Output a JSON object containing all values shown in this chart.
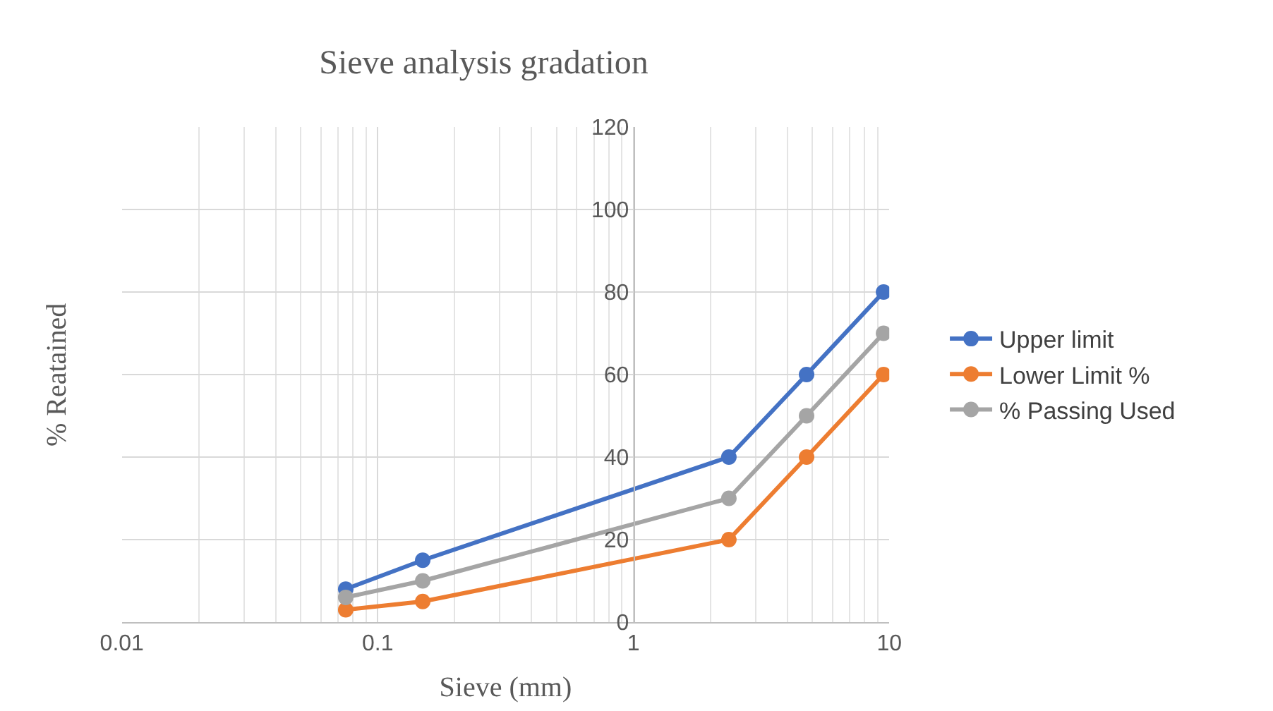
{
  "chart_data": {
    "type": "line",
    "title": "Sieve analysis gradation",
    "xlabel": "Sieve (mm)",
    "ylabel": "% Reatained",
    "x": [
      0.075,
      0.15,
      2.36,
      4.75,
      9.5
    ],
    "series": [
      {
        "name": "Upper limit",
        "color": "#4472c4",
        "values": [
          8,
          15,
          40,
          60,
          80
        ]
      },
      {
        "name": "Lower Limit %",
        "color": "#ed7d31",
        "values": [
          3,
          5,
          20,
          40,
          60
        ]
      },
      {
        "name": "% Passing Used",
        "color": "#a5a5a5",
        "values": [
          6,
          10,
          30,
          50,
          70
        ]
      }
    ],
    "log": "x",
    "xlim": [
      0.01,
      10
    ],
    "xticks": [
      0.01,
      0.1,
      1,
      10
    ],
    "ylim": [
      0,
      120
    ],
    "yticks": [
      0,
      20,
      40,
      60,
      80,
      100,
      120
    ],
    "grid": true,
    "legend": "right",
    "marker": "circle",
    "line_style": "solid"
  }
}
